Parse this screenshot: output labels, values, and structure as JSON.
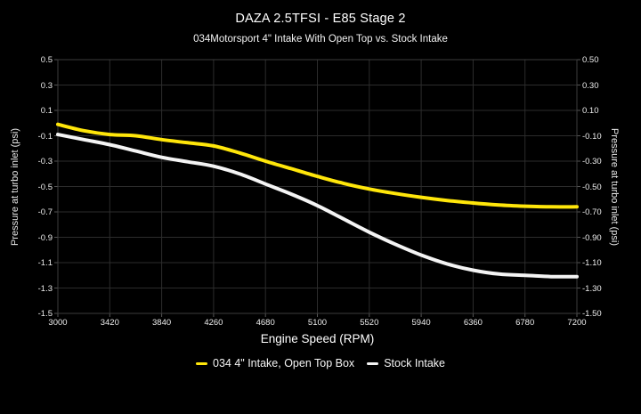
{
  "header": {
    "title": "DAZA 2.5TFSI - E85 Stage 2",
    "subtitle": "034Motorsport 4\" Intake With Open Top vs. Stock Intake"
  },
  "chart_data": {
    "type": "line",
    "title": "DAZA 2.5TFSI - E85 Stage 2",
    "subtitle": "034Motorsport 4\" Intake With Open Top vs. Stock Intake",
    "xlabel": "Engine Speed (RPM)",
    "ylabel_left": "Pressure at turbo inlet (psi)",
    "ylabel_right": "Pressure at turbo inlet (psi)",
    "xlim": [
      3000,
      7200
    ],
    "ylim": [
      -1.5,
      0.5
    ],
    "grid": true,
    "legend_position": "bottom",
    "background_color": "#000000",
    "grid_color": "#2c2c2c",
    "border_color": "#3d3d3d",
    "tick_color": "#555555",
    "x_ticks": [
      3000,
      3420,
      3840,
      4260,
      4680,
      5100,
      5520,
      5940,
      6360,
      6780,
      7200
    ],
    "y_tick_values": [
      0.5,
      0.3,
      0.1,
      -0.1,
      -0.3,
      -0.5,
      -0.7,
      -0.9,
      -1.1,
      -1.3,
      -1.5
    ],
    "y_tick_labels_left": [
      "0.5",
      "0.3",
      "0.1",
      "-0.1",
      "-0.3",
      "-0.5",
      "-0.7",
      "-0.9",
      "-1.1",
      "-1.3",
      "-1.5"
    ],
    "y_tick_labels_right": [
      "0.50",
      "0.30",
      "0.10",
      "-0.10",
      "-0.30",
      "-0.50",
      "-0.70",
      "-0.90",
      "-1.10",
      "-1.30",
      "-1.50"
    ],
    "x": [
      3000,
      3210,
      3420,
      3630,
      3840,
      4050,
      4260,
      4470,
      4680,
      4890,
      5100,
      5310,
      5520,
      5730,
      5940,
      6150,
      6360,
      6570,
      6780,
      6990,
      7200
    ],
    "series": [
      {
        "name": "034 4\" Intake, Open Top Box",
        "color": "#ffe60a",
        "values": [
          -0.01,
          -0.06,
          -0.09,
          -0.1,
          -0.13,
          -0.155,
          -0.18,
          -0.235,
          -0.3,
          -0.36,
          -0.42,
          -0.475,
          -0.52,
          -0.555,
          -0.585,
          -0.61,
          -0.63,
          -0.645,
          -0.655,
          -0.66,
          -0.66
        ]
      },
      {
        "name": "Stock Intake",
        "color": "#f4f4f4",
        "values": [
          -0.09,
          -0.13,
          -0.17,
          -0.22,
          -0.27,
          -0.305,
          -0.34,
          -0.4,
          -0.48,
          -0.56,
          -0.65,
          -0.755,
          -0.86,
          -0.955,
          -1.04,
          -1.11,
          -1.16,
          -1.19,
          -1.2,
          -1.21,
          -1.21
        ]
      }
    ]
  }
}
